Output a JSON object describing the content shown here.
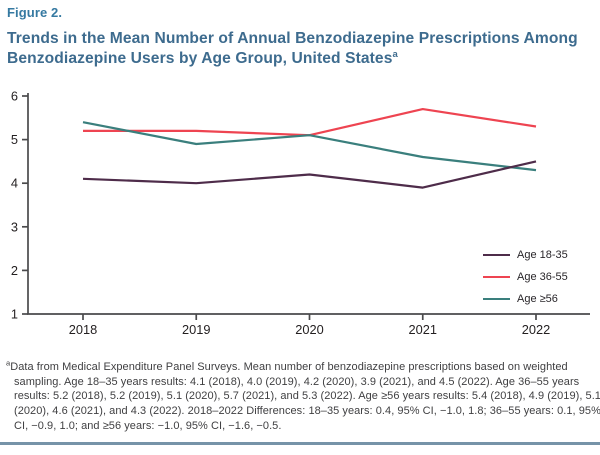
{
  "header": {
    "figure_label": "Figure 2.",
    "title": "Trends in the Mean Number of Annual Benzodiazepine Prescriptions Among Benzodiazepine Users by Age Group, United States",
    "title_superscript": "a"
  },
  "chart_data": {
    "type": "line",
    "title": "Trends in the Mean Number of Annual Benzodiazepine Prescriptions Among Benzodiazepine Users by Age Group, United States",
    "x": [
      "2018",
      "2019",
      "2020",
      "2021",
      "2022"
    ],
    "series": [
      {
        "name": "Age 36-55",
        "color": "#ee4451",
        "values": [
          5.2,
          5.2,
          5.1,
          5.7,
          5.3
        ]
      },
      {
        "name": "Age ≥56",
        "color": "#3a7f7d",
        "values": [
          5.4,
          4.9,
          5.1,
          4.6,
          4.3
        ]
      },
      {
        "name": "Age 18-35",
        "color": "#4e2c4a",
        "values": [
          4.1,
          4.0,
          4.2,
          3.9,
          4.5
        ]
      }
    ],
    "legend_order": [
      "Age 18-35",
      "Age 36-55",
      "Age ≥56"
    ],
    "xlabel": "",
    "ylabel": "",
    "ylim": [
      1,
      6
    ],
    "yticks": [
      1,
      2,
      3,
      4,
      5,
      6
    ],
    "grid": false,
    "legend_position": "inside-bottom-right"
  },
  "footnote": {
    "superscript": "a",
    "text": "Data from Medical Expenditure Panel Surveys. Mean number of benzodiazepine prescriptions based on weighted sampling. Age 18–35 years results: 4.1 (2018), 4.0 (2019), 4.2 (2020), 3.9 (2021), and 4.5 (2022). Age 36–55 years results: 5.2 (2018), 5.2 (2019), 5.1 (2020), 5.7 (2021), and 5.3 (2022). Age ≥56 years results: 5.4 (2018), 4.9 (2019), 5.1 (2020), 4.6 (2021), and 4.3 (2022). 2018–2022 Differences: 18–35 years: 0.4, 95% CI, −1.0, 1.8; 36–55 years: 0.1, 95% CI, −0.9, 1.0; and ≥56 years: −1.0, 95% CI, −1.6, −0.5."
  },
  "colors": {
    "figure_label": "#3579a1",
    "title": "#3d6b8e",
    "axis": "#4a4a4c",
    "tick_label": "#231f20",
    "footnote_text": "#3f3f41",
    "bottom_rule": "#7693a8"
  }
}
